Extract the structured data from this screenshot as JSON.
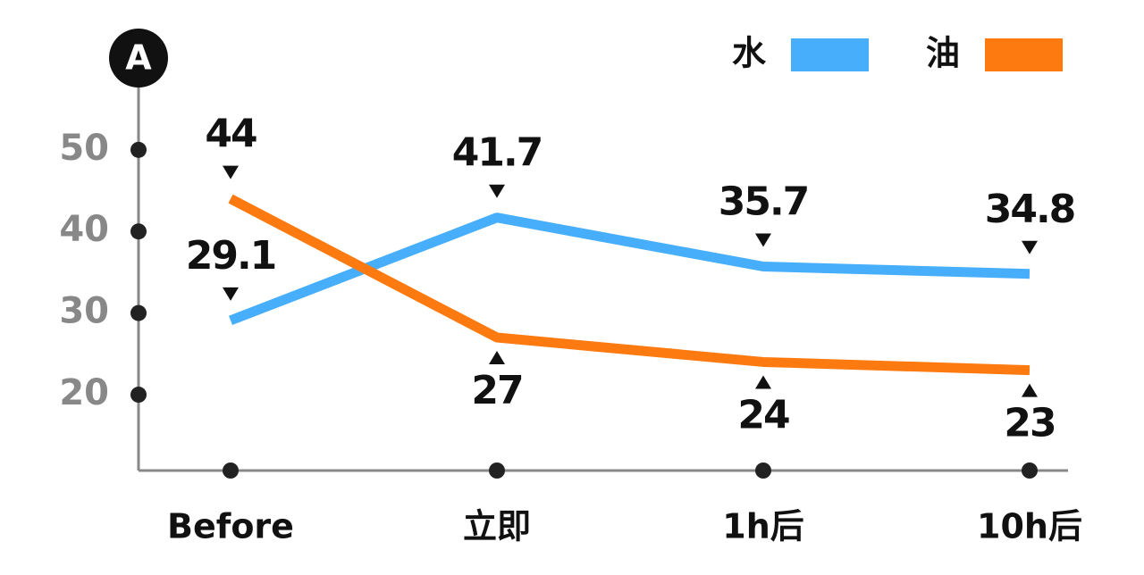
{
  "chart_data": {
    "type": "line",
    "panel_label": "A",
    "categories": [
      "Before",
      "立即",
      "1h后",
      "10h后"
    ],
    "series": [
      {
        "name": "水",
        "color": "#47aefb",
        "values": [
          29.1,
          41.7,
          35.7,
          34.8
        ]
      },
      {
        "name": "油",
        "color": "#fc7a0f",
        "values": [
          44,
          27,
          24,
          23
        ]
      }
    ],
    "ylim": [
      10.7,
      61.8
    ],
    "yticks": [
      20,
      30,
      40,
      50
    ]
  }
}
